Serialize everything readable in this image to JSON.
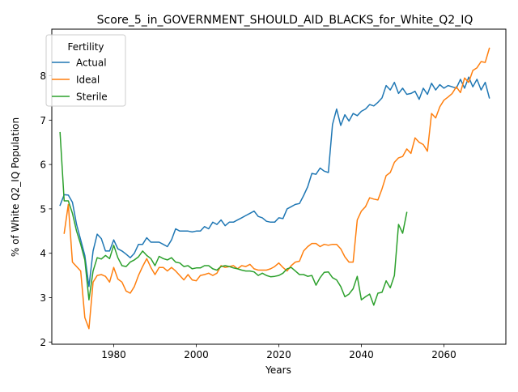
{
  "chart_data": {
    "type": "line",
    "title": "Score_5_in_GOVERNMENT_SHOULD_AID_BLACKS_for_White_Q2_IQ",
    "xlabel": "Years",
    "ylabel": "% of White Q2_IQ Population",
    "xlim": [
      1965,
      2075
    ],
    "ylim": [
      1.95,
      9.05
    ],
    "xticks": [
      1980,
      2000,
      2020,
      2040,
      2060
    ],
    "yticks": [
      2,
      3,
      4,
      5,
      6,
      7,
      8
    ],
    "grid": false,
    "legend": {
      "title": "Fertility",
      "placement": "upper-left"
    },
    "series": [
      {
        "name": "Actual",
        "color": "#1f77b4",
        "points": [
          [
            1967,
            5.08
          ],
          [
            1968,
            5.32
          ],
          [
            1969,
            5.31
          ],
          [
            1970,
            5.15
          ],
          [
            1971,
            4.65
          ],
          [
            1972,
            4.3
          ],
          [
            1973,
            3.95
          ],
          [
            1974,
            3.25
          ],
          [
            1975,
            4.05
          ],
          [
            1976,
            4.43
          ],
          [
            1977,
            4.33
          ],
          [
            1978,
            4.05
          ],
          [
            1979,
            4.05
          ],
          [
            1980,
            4.3
          ],
          [
            1981,
            4.1
          ],
          [
            1982,
            4.05
          ],
          [
            1983,
            3.98
          ],
          [
            1984,
            3.9
          ],
          [
            1985,
            4.0
          ],
          [
            1986,
            4.2
          ],
          [
            1987,
            4.2
          ],
          [
            1988,
            4.35
          ],
          [
            1989,
            4.25
          ],
          [
            1990,
            4.25
          ],
          [
            1991,
            4.25
          ],
          [
            1992,
            4.2
          ],
          [
            1993,
            4.15
          ],
          [
            1994,
            4.3
          ],
          [
            1995,
            4.55
          ],
          [
            1996,
            4.5
          ],
          [
            1997,
            4.5
          ],
          [
            1998,
            4.5
          ],
          [
            1999,
            4.48
          ],
          [
            2000,
            4.5
          ],
          [
            2001,
            4.5
          ],
          [
            2002,
            4.6
          ],
          [
            2003,
            4.55
          ],
          [
            2004,
            4.7
          ],
          [
            2005,
            4.65
          ],
          [
            2006,
            4.75
          ],
          [
            2007,
            4.62
          ],
          [
            2008,
            4.7
          ],
          [
            2009,
            4.7
          ],
          [
            2010,
            4.75
          ],
          [
            2011,
            4.8
          ],
          [
            2012,
            4.85
          ],
          [
            2013,
            4.9
          ],
          [
            2014,
            4.95
          ],
          [
            2015,
            4.83
          ],
          [
            2016,
            4.8
          ],
          [
            2017,
            4.72
          ],
          [
            2018,
            4.7
          ],
          [
            2019,
            4.7
          ],
          [
            2020,
            4.8
          ],
          [
            2021,
            4.78
          ],
          [
            2022,
            5.0
          ],
          [
            2023,
            5.05
          ],
          [
            2024,
            5.1
          ],
          [
            2025,
            5.12
          ],
          [
            2026,
            5.3
          ],
          [
            2027,
            5.5
          ],
          [
            2028,
            5.8
          ],
          [
            2029,
            5.78
          ],
          [
            2030,
            5.92
          ],
          [
            2031,
            5.85
          ],
          [
            2032,
            5.82
          ],
          [
            2033,
            6.9
          ],
          [
            2034,
            7.25
          ],
          [
            2035,
            6.88
          ],
          [
            2036,
            7.12
          ],
          [
            2037,
            6.98
          ],
          [
            2038,
            7.15
          ],
          [
            2039,
            7.1
          ],
          [
            2040,
            7.2
          ],
          [
            2041,
            7.25
          ],
          [
            2042,
            7.35
          ],
          [
            2043,
            7.32
          ],
          [
            2044,
            7.4
          ],
          [
            2045,
            7.5
          ],
          [
            2046,
            7.78
          ],
          [
            2047,
            7.68
          ],
          [
            2048,
            7.85
          ],
          [
            2049,
            7.6
          ],
          [
            2050,
            7.72
          ],
          [
            2051,
            7.58
          ],
          [
            2052,
            7.6
          ],
          [
            2053,
            7.65
          ],
          [
            2054,
            7.47
          ],
          [
            2055,
            7.72
          ],
          [
            2056,
            7.58
          ],
          [
            2057,
            7.83
          ],
          [
            2058,
            7.68
          ],
          [
            2059,
            7.8
          ],
          [
            2060,
            7.72
          ],
          [
            2061,
            7.78
          ],
          [
            2062,
            7.75
          ],
          [
            2063,
            7.72
          ],
          [
            2064,
            7.92
          ],
          [
            2065,
            7.72
          ],
          [
            2066,
            7.97
          ],
          [
            2067,
            7.75
          ],
          [
            2068,
            7.92
          ],
          [
            2069,
            7.68
          ],
          [
            2070,
            7.85
          ],
          [
            2071,
            7.5
          ]
        ]
      },
      {
        "name": "Ideal",
        "color": "#ff7f0e",
        "points": [
          [
            1968,
            4.45
          ],
          [
            1969,
            5.1
          ],
          [
            1970,
            3.8
          ],
          [
            1971,
            3.7
          ],
          [
            1972,
            3.6
          ],
          [
            1973,
            2.55
          ],
          [
            1974,
            2.3
          ],
          [
            1975,
            3.35
          ],
          [
            1976,
            3.5
          ],
          [
            1977,
            3.52
          ],
          [
            1978,
            3.48
          ],
          [
            1979,
            3.35
          ],
          [
            1980,
            3.68
          ],
          [
            1981,
            3.42
          ],
          [
            1982,
            3.35
          ],
          [
            1983,
            3.15
          ],
          [
            1984,
            3.1
          ],
          [
            1985,
            3.25
          ],
          [
            1986,
            3.5
          ],
          [
            1987,
            3.7
          ],
          [
            1988,
            3.88
          ],
          [
            1989,
            3.68
          ],
          [
            1990,
            3.52
          ],
          [
            1991,
            3.68
          ],
          [
            1992,
            3.68
          ],
          [
            1993,
            3.6
          ],
          [
            1994,
            3.68
          ],
          [
            1995,
            3.6
          ],
          [
            1996,
            3.5
          ],
          [
            1997,
            3.4
          ],
          [
            1998,
            3.52
          ],
          [
            1999,
            3.4
          ],
          [
            2000,
            3.38
          ],
          [
            2001,
            3.5
          ],
          [
            2002,
            3.52
          ],
          [
            2003,
            3.55
          ],
          [
            2004,
            3.5
          ],
          [
            2005,
            3.55
          ],
          [
            2006,
            3.72
          ],
          [
            2007,
            3.68
          ],
          [
            2008,
            3.7
          ],
          [
            2009,
            3.72
          ],
          [
            2010,
            3.65
          ],
          [
            2011,
            3.72
          ],
          [
            2012,
            3.7
          ],
          [
            2013,
            3.75
          ],
          [
            2014,
            3.65
          ],
          [
            2015,
            3.62
          ],
          [
            2016,
            3.62
          ],
          [
            2017,
            3.62
          ],
          [
            2018,
            3.65
          ],
          [
            2019,
            3.7
          ],
          [
            2020,
            3.78
          ],
          [
            2021,
            3.68
          ],
          [
            2022,
            3.6
          ],
          [
            2023,
            3.72
          ],
          [
            2024,
            3.8
          ],
          [
            2025,
            3.82
          ],
          [
            2026,
            4.05
          ],
          [
            2027,
            4.15
          ],
          [
            2028,
            4.22
          ],
          [
            2029,
            4.22
          ],
          [
            2030,
            4.15
          ],
          [
            2031,
            4.2
          ],
          [
            2032,
            4.18
          ],
          [
            2033,
            4.2
          ],
          [
            2034,
            4.2
          ],
          [
            2035,
            4.1
          ],
          [
            2036,
            3.92
          ],
          [
            2037,
            3.8
          ],
          [
            2038,
            3.8
          ],
          [
            2039,
            4.75
          ],
          [
            2040,
            4.95
          ],
          [
            2041,
            5.05
          ],
          [
            2042,
            5.25
          ],
          [
            2043,
            5.22
          ],
          [
            2044,
            5.2
          ],
          [
            2045,
            5.45
          ],
          [
            2046,
            5.75
          ],
          [
            2047,
            5.82
          ],
          [
            2048,
            6.05
          ],
          [
            2049,
            6.15
          ],
          [
            2050,
            6.18
          ],
          [
            2051,
            6.35
          ],
          [
            2052,
            6.25
          ],
          [
            2053,
            6.6
          ],
          [
            2054,
            6.5
          ],
          [
            2055,
            6.45
          ],
          [
            2056,
            6.3
          ],
          [
            2057,
            7.15
          ],
          [
            2058,
            7.05
          ],
          [
            2059,
            7.3
          ],
          [
            2060,
            7.45
          ],
          [
            2061,
            7.52
          ],
          [
            2062,
            7.6
          ],
          [
            2063,
            7.75
          ],
          [
            2064,
            7.62
          ],
          [
            2065,
            7.95
          ],
          [
            2066,
            7.85
          ],
          [
            2067,
            8.12
          ],
          [
            2068,
            8.18
          ],
          [
            2069,
            8.32
          ],
          [
            2070,
            8.3
          ],
          [
            2071,
            8.62
          ]
        ]
      },
      {
        "name": "Sterile",
        "color": "#2ca02c",
        "points": [
          [
            1967,
            6.72
          ],
          [
            1968,
            5.18
          ],
          [
            1969,
            5.18
          ],
          [
            1970,
            4.9
          ],
          [
            1971,
            4.5
          ],
          [
            1972,
            4.2
          ],
          [
            1973,
            3.85
          ],
          [
            1974,
            2.95
          ],
          [
            1975,
            3.6
          ],
          [
            1976,
            3.9
          ],
          [
            1977,
            3.87
          ],
          [
            1978,
            3.95
          ],
          [
            1979,
            3.88
          ],
          [
            1980,
            4.18
          ],
          [
            1981,
            3.9
          ],
          [
            1982,
            3.72
          ],
          [
            1983,
            3.7
          ],
          [
            1984,
            3.8
          ],
          [
            1985,
            3.85
          ],
          [
            1986,
            3.92
          ],
          [
            1987,
            4.05
          ],
          [
            1988,
            3.95
          ],
          [
            1989,
            3.88
          ],
          [
            1990,
            3.72
          ],
          [
            1991,
            3.93
          ],
          [
            1992,
            3.88
          ],
          [
            1993,
            3.85
          ],
          [
            1994,
            3.9
          ],
          [
            1995,
            3.8
          ],
          [
            1996,
            3.78
          ],
          [
            1997,
            3.7
          ],
          [
            1998,
            3.72
          ],
          [
            1999,
            3.65
          ],
          [
            2000,
            3.67
          ],
          [
            2001,
            3.67
          ],
          [
            2002,
            3.72
          ],
          [
            2003,
            3.72
          ],
          [
            2004,
            3.65
          ],
          [
            2005,
            3.62
          ],
          [
            2006,
            3.7
          ],
          [
            2007,
            3.72
          ],
          [
            2008,
            3.7
          ],
          [
            2009,
            3.67
          ],
          [
            2010,
            3.65
          ],
          [
            2011,
            3.62
          ],
          [
            2012,
            3.6
          ],
          [
            2013,
            3.6
          ],
          [
            2014,
            3.58
          ],
          [
            2015,
            3.5
          ],
          [
            2016,
            3.55
          ],
          [
            2017,
            3.5
          ],
          [
            2018,
            3.47
          ],
          [
            2019,
            3.48
          ],
          [
            2020,
            3.5
          ],
          [
            2021,
            3.55
          ],
          [
            2022,
            3.65
          ],
          [
            2023,
            3.68
          ],
          [
            2024,
            3.6
          ],
          [
            2025,
            3.52
          ],
          [
            2026,
            3.52
          ],
          [
            2027,
            3.48
          ],
          [
            2028,
            3.5
          ],
          [
            2029,
            3.28
          ],
          [
            2030,
            3.45
          ],
          [
            2031,
            3.57
          ],
          [
            2032,
            3.58
          ],
          [
            2033,
            3.45
          ],
          [
            2034,
            3.4
          ],
          [
            2035,
            3.25
          ],
          [
            2036,
            3.02
          ],
          [
            2037,
            3.08
          ],
          [
            2038,
            3.2
          ],
          [
            2039,
            3.48
          ],
          [
            2040,
            2.95
          ],
          [
            2041,
            3.02
          ],
          [
            2042,
            3.08
          ],
          [
            2043,
            2.83
          ],
          [
            2044,
            3.1
          ],
          [
            2045,
            3.12
          ],
          [
            2046,
            3.38
          ],
          [
            2047,
            3.22
          ],
          [
            2048,
            3.5
          ],
          [
            2049,
            4.65
          ],
          [
            2050,
            4.45
          ],
          [
            2051,
            4.92
          ]
        ]
      }
    ]
  }
}
